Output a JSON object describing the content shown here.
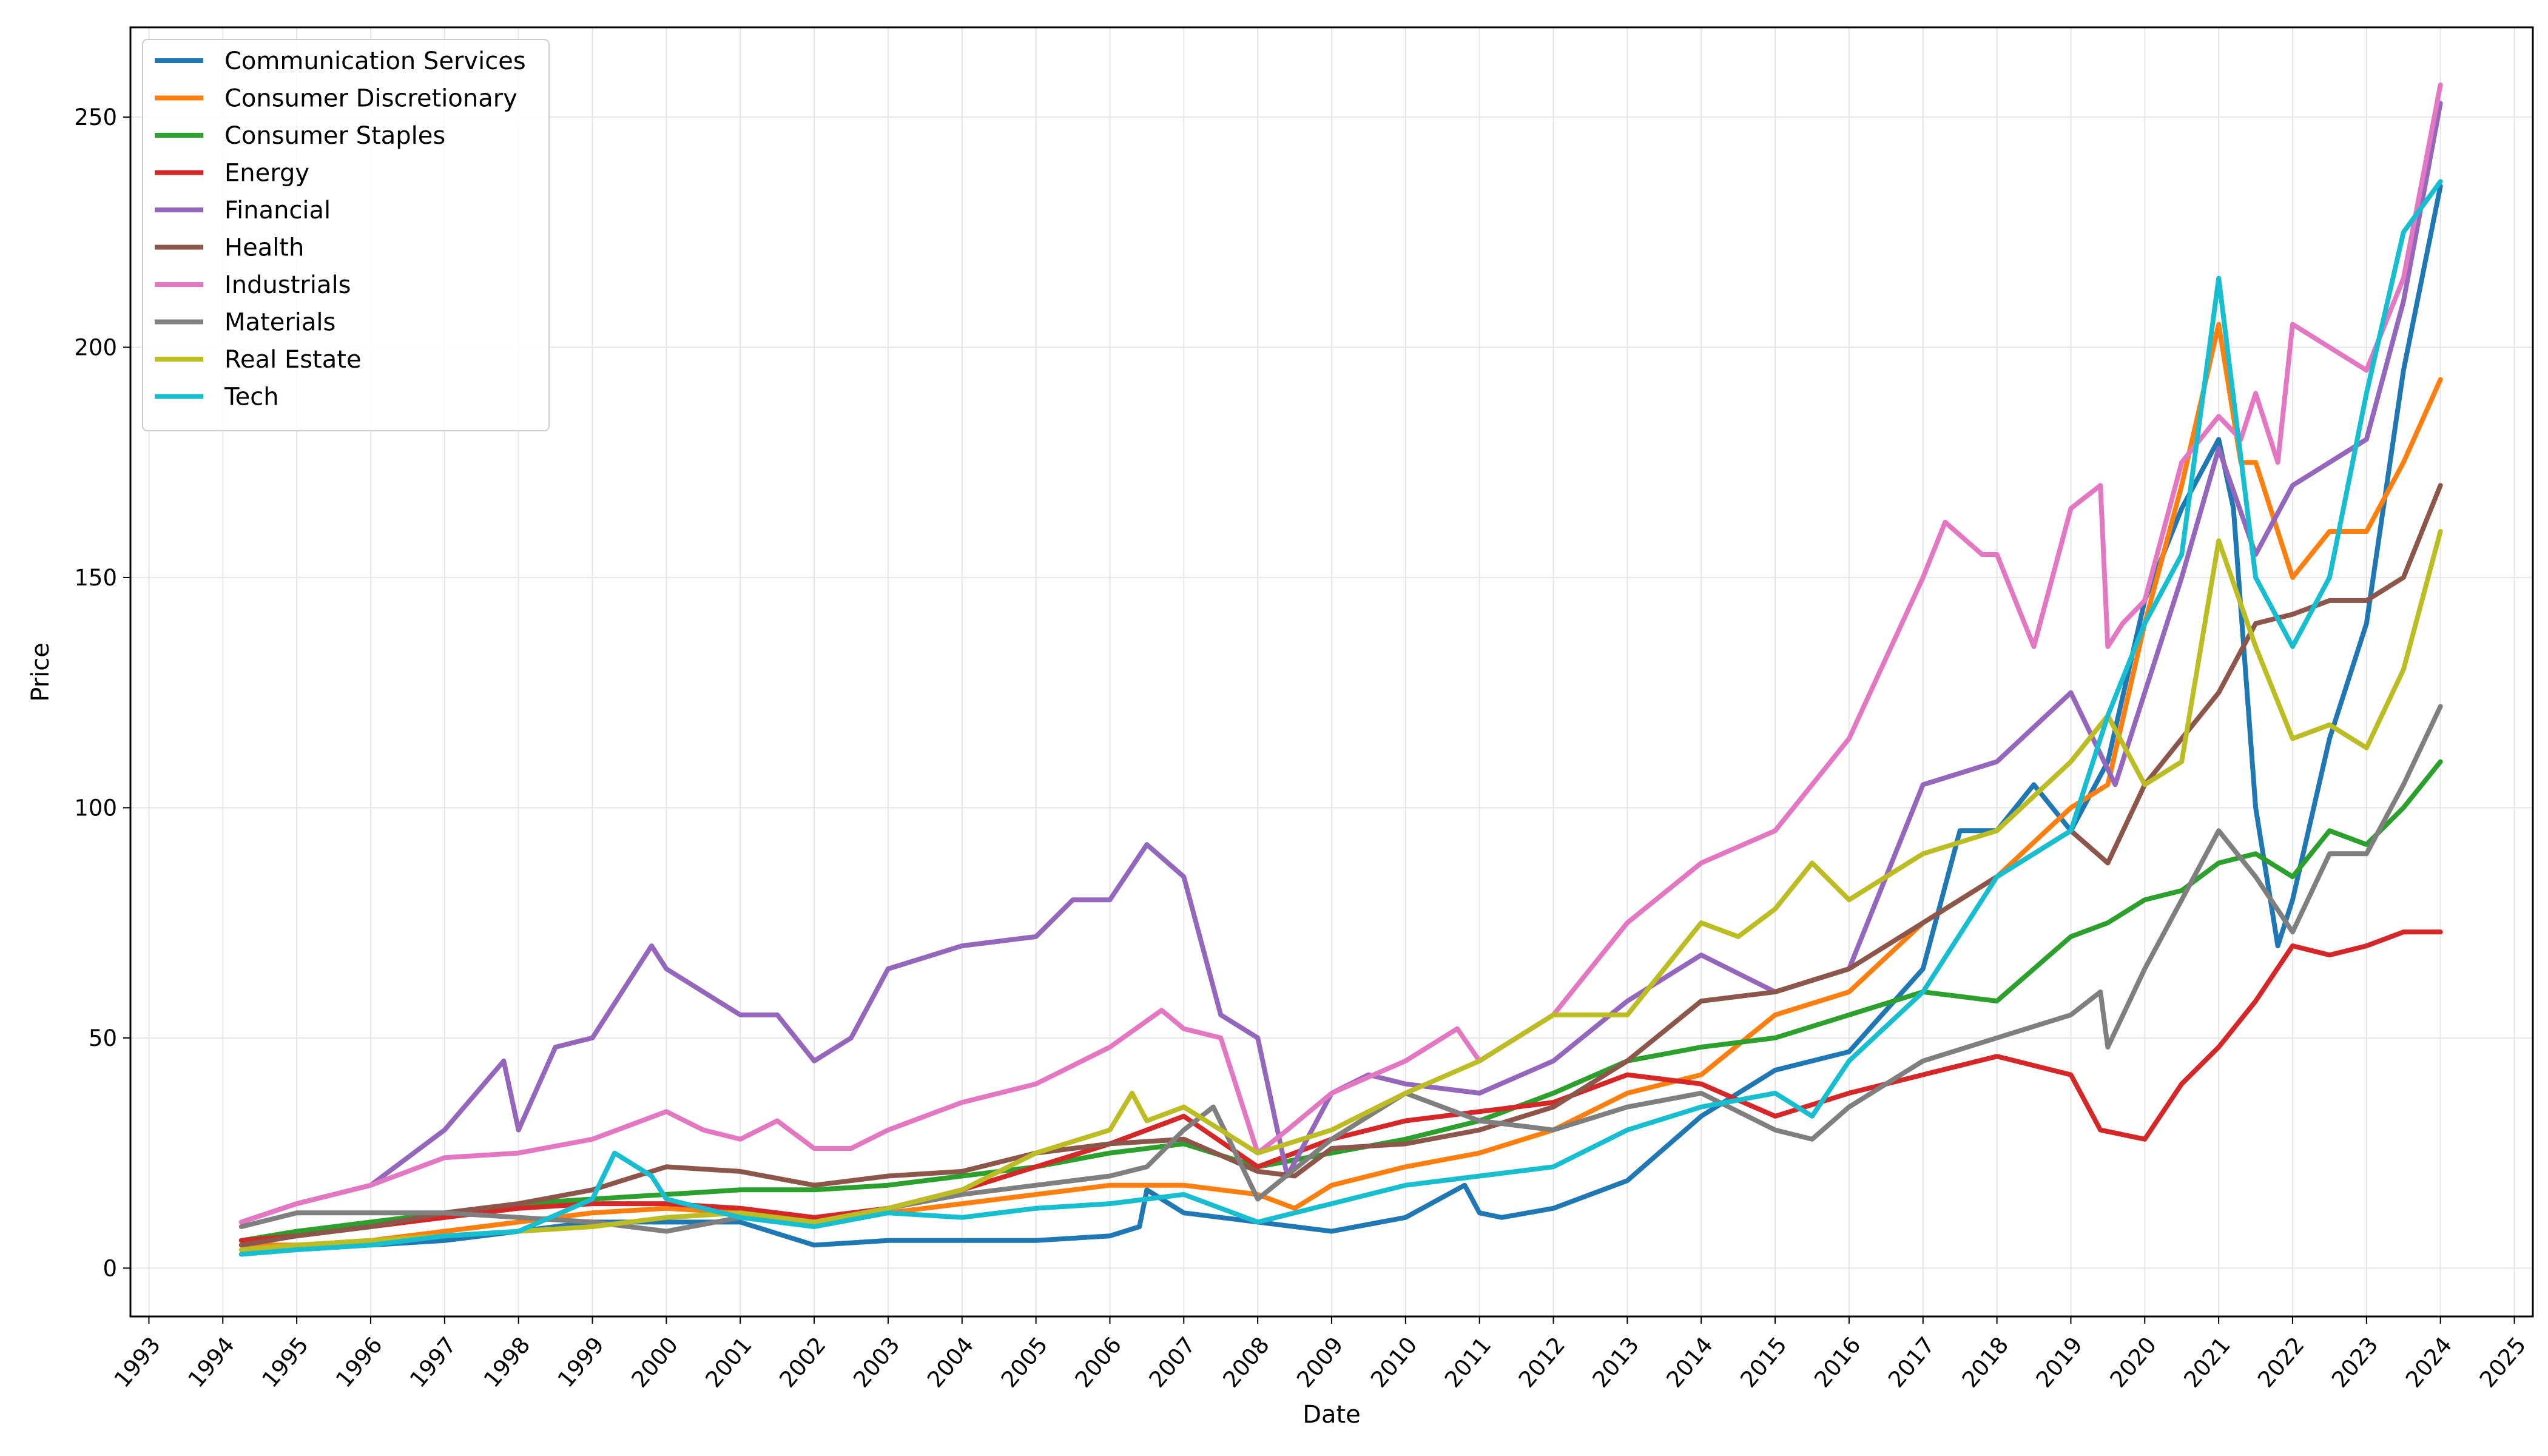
{
  "chart_data": {
    "type": "line",
    "title": "",
    "xlabel": "Date",
    "ylabel": "Price",
    "xlim": [
      1992.75,
      2025.25
    ],
    "ylim": [
      -10.5,
      269.5
    ],
    "x_ticks": [
      1993,
      1994,
      1995,
      1996,
      1997,
      1998,
      1999,
      2000,
      2001,
      2002,
      2003,
      2004,
      2005,
      2006,
      2007,
      2008,
      2009,
      2010,
      2011,
      2012,
      2013,
      2014,
      2015,
      2016,
      2017,
      2018,
      2019,
      2020,
      2021,
      2022,
      2023,
      2024,
      2025
    ],
    "x_tick_labels": [
      "1993",
      "1994",
      "1995",
      "1996",
      "1997",
      "1998",
      "1999",
      "2000",
      "2001",
      "2002",
      "2003",
      "2004",
      "2005",
      "2006",
      "2007",
      "2008",
      "2009",
      "2010",
      "2011",
      "2012",
      "2013",
      "2014",
      "2015",
      "2016",
      "2017",
      "2018",
      "2019",
      "2020",
      "2021",
      "2022",
      "2023",
      "2024",
      "2025"
    ],
    "y_ticks": [
      0,
      50,
      100,
      150,
      200,
      250
    ],
    "y_tick_labels": [
      "0",
      "50",
      "100",
      "150",
      "200",
      "250"
    ],
    "grid": true,
    "legend_position": "upper-left",
    "series": [
      {
        "name": "Communication Services",
        "color": "#1f77b4",
        "x": [
          1994.25,
          1995,
          1996,
          1997,
          1998,
          1999,
          2000,
          2001,
          2002,
          2003,
          2004,
          2005,
          2006,
          2006.4,
          2006.5,
          2007,
          2008,
          2009,
          2010,
          2010.8,
          2011,
          2011.3,
          2012,
          2013,
          2014,
          2015,
          2016,
          2017,
          2017.5,
          2018,
          2018.5,
          2019,
          2019.5,
          2020,
          2020.5,
          2021,
          2021.2,
          2021.5,
          2021.8,
          2022,
          2022.5,
          2023,
          2023.5,
          2024
        ],
        "y": [
          5,
          5,
          5,
          6,
          8,
          10,
          10,
          10,
          5,
          6,
          6,
          6,
          7,
          9,
          17,
          12,
          10,
          8,
          11,
          18,
          12,
          11,
          13,
          19,
          33,
          43,
          47,
          65,
          95,
          95,
          105,
          95,
          110,
          145,
          165,
          180,
          165,
          100,
          70,
          80,
          115,
          140,
          195,
          235
        ]
      },
      {
        "name": "Consumer Discretionary",
        "color": "#ff7f0e",
        "x": [
          1994.25,
          1995,
          1996,
          1997,
          1998,
          1999,
          2000,
          2001,
          2002,
          2003,
          2004,
          2005,
          2006,
          2007,
          2008,
          2008.5,
          2009,
          2010,
          2011,
          2012,
          2013,
          2014,
          2015,
          2016,
          2017,
          2018,
          2019,
          2019.5,
          2020,
          2020.5,
          2021,
          2021.3,
          2021.5,
          2022,
          2022.5,
          2023,
          2023.5,
          2024
        ],
        "y": [
          5,
          5,
          6,
          8,
          10,
          12,
          13,
          12,
          9,
          12,
          14,
          16,
          18,
          18,
          16,
          13,
          18,
          22,
          25,
          30,
          38,
          42,
          55,
          60,
          75,
          85,
          100,
          105,
          140,
          170,
          205,
          175,
          175,
          150,
          160,
          160,
          175,
          193
        ]
      },
      {
        "name": "Consumer Staples",
        "color": "#2ca02c",
        "x": [
          1994.25,
          1995,
          1996,
          1997,
          1998,
          1999,
          2000,
          2001,
          2002,
          2003,
          2004,
          2005,
          2006,
          2007,
          2008,
          2009,
          2010,
          2011,
          2012,
          2013,
          2014,
          2015,
          2016,
          2017,
          2018,
          2019,
          2019.5,
          2020,
          2020.5,
          2021,
          2021.5,
          2022,
          2022.5,
          2023,
          2023.5,
          2024
        ],
        "y": [
          6,
          8,
          10,
          12,
          14,
          15,
          16,
          17,
          17,
          18,
          20,
          22,
          25,
          27,
          22,
          25,
          28,
          32,
          38,
          45,
          48,
          50,
          55,
          60,
          58,
          72,
          75,
          80,
          82,
          88,
          90,
          85,
          95,
          92,
          100,
          110
        ]
      },
      {
        "name": "Energy",
        "color": "#d62728",
        "x": [
          1994.25,
          1995,
          1996,
          1997,
          1998,
          1999,
          2000,
          2001,
          2002,
          2003,
          2004,
          2005,
          2006,
          2007,
          2008,
          2009,
          2010,
          2011,
          2012,
          2013,
          2014,
          2015,
          2016,
          2017,
          2018,
          2019,
          2019.4,
          2020,
          2020.5,
          2021,
          2021.5,
          2022,
          2022.5,
          2023,
          2023.5,
          2024
        ],
        "y": [
          6,
          7,
          9,
          11,
          13,
          14,
          14,
          13,
          11,
          13,
          17,
          22,
          27,
          33,
          22,
          28,
          32,
          34,
          36,
          42,
          40,
          33,
          38,
          42,
          46,
          42,
          30,
          28,
          40,
          48,
          58,
          70,
          68,
          70,
          73,
          73
        ]
      },
      {
        "name": "Financial",
        "color": "#9467bd",
        "x": [
          1994.25,
          1995,
          1996,
          1997,
          1997.8,
          1998,
          1998.5,
          1999,
          1999.8,
          2000,
          2000.5,
          2001,
          2001.5,
          2002,
          2002.5,
          2003,
          2004,
          2005,
          2005.5,
          2006,
          2006.5,
          2007,
          2007.5,
          2008,
          2008.4,
          2009,
          2009.5,
          2010,
          2011,
          2012,
          2013,
          2014,
          2015,
          2016,
          2017,
          2018,
          2019,
          2019.6,
          2020,
          2020.5,
          2021,
          2021.5,
          2022,
          2022.5,
          2023,
          2023.5,
          2024
        ],
        "y": [
          10,
          14,
          18,
          30,
          45,
          30,
          48,
          50,
          70,
          65,
          60,
          55,
          55,
          45,
          50,
          65,
          70,
          72,
          80,
          80,
          92,
          85,
          55,
          50,
          20,
          38,
          42,
          40,
          38,
          45,
          58,
          68,
          60,
          65,
          105,
          110,
          125,
          105,
          125,
          150,
          178,
          155,
          170,
          175,
          180,
          210,
          253
        ]
      },
      {
        "name": "Health",
        "color": "#8c564b",
        "x": [
          1994.25,
          1995,
          1996,
          1997,
          1998,
          1999,
          2000,
          2001,
          2002,
          2003,
          2004,
          2005,
          2006,
          2007,
          2008,
          2008.5,
          2009,
          2010,
          2011,
          2012,
          2013,
          2014,
          2015,
          2016,
          2017,
          2018,
          2019,
          2019.5,
          2020,
          2020.5,
          2021,
          2021.5,
          2022,
          2022.5,
          2023,
          2023.5,
          2024
        ],
        "y": [
          5,
          7,
          9,
          12,
          14,
          17,
          22,
          21,
          18,
          20,
          21,
          25,
          27,
          28,
          21,
          20,
          26,
          27,
          30,
          35,
          45,
          58,
          60,
          65,
          75,
          85,
          95,
          88,
          105,
          115,
          125,
          140,
          142,
          145,
          145,
          150,
          170
        ]
      },
      {
        "name": "Industrials",
        "color": "#e377c2",
        "x": [
          1994.25,
          1995,
          1996,
          1997,
          1998,
          1999,
          2000,
          2000.5,
          2001,
          2001.5,
          2002,
          2002.5,
          2003,
          2004,
          2005,
          2006,
          2006.7,
          2007,
          2007.5,
          2008,
          2008.4,
          2009,
          2010,
          2010.7,
          2011,
          2012,
          2013,
          2014,
          2015,
          2016,
          2017,
          2017.3,
          2017.8,
          2018,
          2018.5,
          2019,
          2019.4,
          2019.5,
          2019.7,
          2020,
          2020.5,
          2021,
          2021.3,
          2021.5,
          2021.8,
          2022,
          2022.5,
          2023,
          2023.5,
          2024
        ],
        "y": [
          10,
          14,
          18,
          24,
          25,
          28,
          34,
          30,
          28,
          32,
          26,
          26,
          30,
          36,
          40,
          48,
          56,
          52,
          50,
          25,
          30,
          38,
          45,
          52,
          45,
          55,
          75,
          88,
          95,
          115,
          150,
          162,
          155,
          155,
          135,
          165,
          170,
          135,
          140,
          145,
          175,
          185,
          180,
          190,
          175,
          205,
          200,
          195,
          215,
          257
        ]
      },
      {
        "name": "Materials",
        "color": "#7f7f7f",
        "x": [
          1994.25,
          1995,
          1996,
          1997,
          1998,
          1999,
          2000,
          2001,
          2002,
          2003,
          2004,
          2005,
          2006,
          2006.5,
          2007,
          2007.4,
          2008,
          2009,
          2010,
          2011,
          2012,
          2013,
          2014,
          2015,
          2015.5,
          2016,
          2017,
          2018,
          2019,
          2019.4,
          2019.5,
          2020,
          2020.5,
          2021,
          2021.5,
          2022,
          2022.5,
          2023,
          2023.5,
          2024
        ],
        "y": [
          9,
          12,
          12,
          12,
          11,
          10,
          8,
          11,
          10,
          13,
          16,
          18,
          20,
          22,
          30,
          35,
          15,
          28,
          38,
          32,
          30,
          35,
          38,
          30,
          28,
          35,
          45,
          50,
          55,
          60,
          48,
          65,
          80,
          95,
          85,
          73,
          90,
          90,
          105,
          122
        ]
      },
      {
        "name": "Real Estate",
        "color": "#bcbd22",
        "x": [
          1994.25,
          1995,
          1996,
          1997,
          1998,
          1999,
          2000,
          2001,
          2002,
          2003,
          2004,
          2005,
          2006,
          2006.3,
          2006.5,
          2007,
          2007.5,
          2008,
          2009,
          2010,
          2011,
          2012,
          2013,
          2014,
          2014.5,
          2015,
          2015.5,
          2016,
          2017,
          2018,
          2019,
          2019.5,
          2020,
          2020.5,
          2021,
          2021.5,
          2022,
          2022.5,
          2023,
          2023.5,
          2024
        ],
        "y": [
          4,
          5,
          6,
          7,
          8,
          9,
          11,
          12,
          10,
          13,
          17,
          25,
          30,
          38,
          32,
          35,
          30,
          25,
          30,
          38,
          45,
          55,
          55,
          75,
          72,
          78,
          88,
          80,
          90,
          95,
          110,
          120,
          105,
          110,
          158,
          135,
          115,
          118,
          113,
          130,
          160
        ]
      },
      {
        "name": "Tech",
        "color": "#17becf",
        "x": [
          1994.25,
          1995,
          1996,
          1997,
          1998,
          1999,
          1999.3,
          1999.8,
          2000,
          2001,
          2002,
          2003,
          2004,
          2005,
          2006,
          2007,
          2008,
          2009,
          2010,
          2011,
          2012,
          2013,
          2014,
          2015,
          2015.5,
          2016,
          2017,
          2018,
          2019,
          2019.5,
          2020,
          2020.5,
          2021,
          2021.5,
          2022,
          2022.5,
          2023,
          2023.5,
          2024
        ],
        "y": [
          3,
          4,
          5,
          7,
          8,
          15,
          25,
          20,
          15,
          11,
          9,
          12,
          11,
          13,
          14,
          16,
          10,
          14,
          18,
          20,
          22,
          30,
          35,
          38,
          33,
          45,
          60,
          85,
          95,
          120,
          140,
          155,
          215,
          150,
          135,
          150,
          190,
          225,
          236
        ]
      }
    ]
  }
}
